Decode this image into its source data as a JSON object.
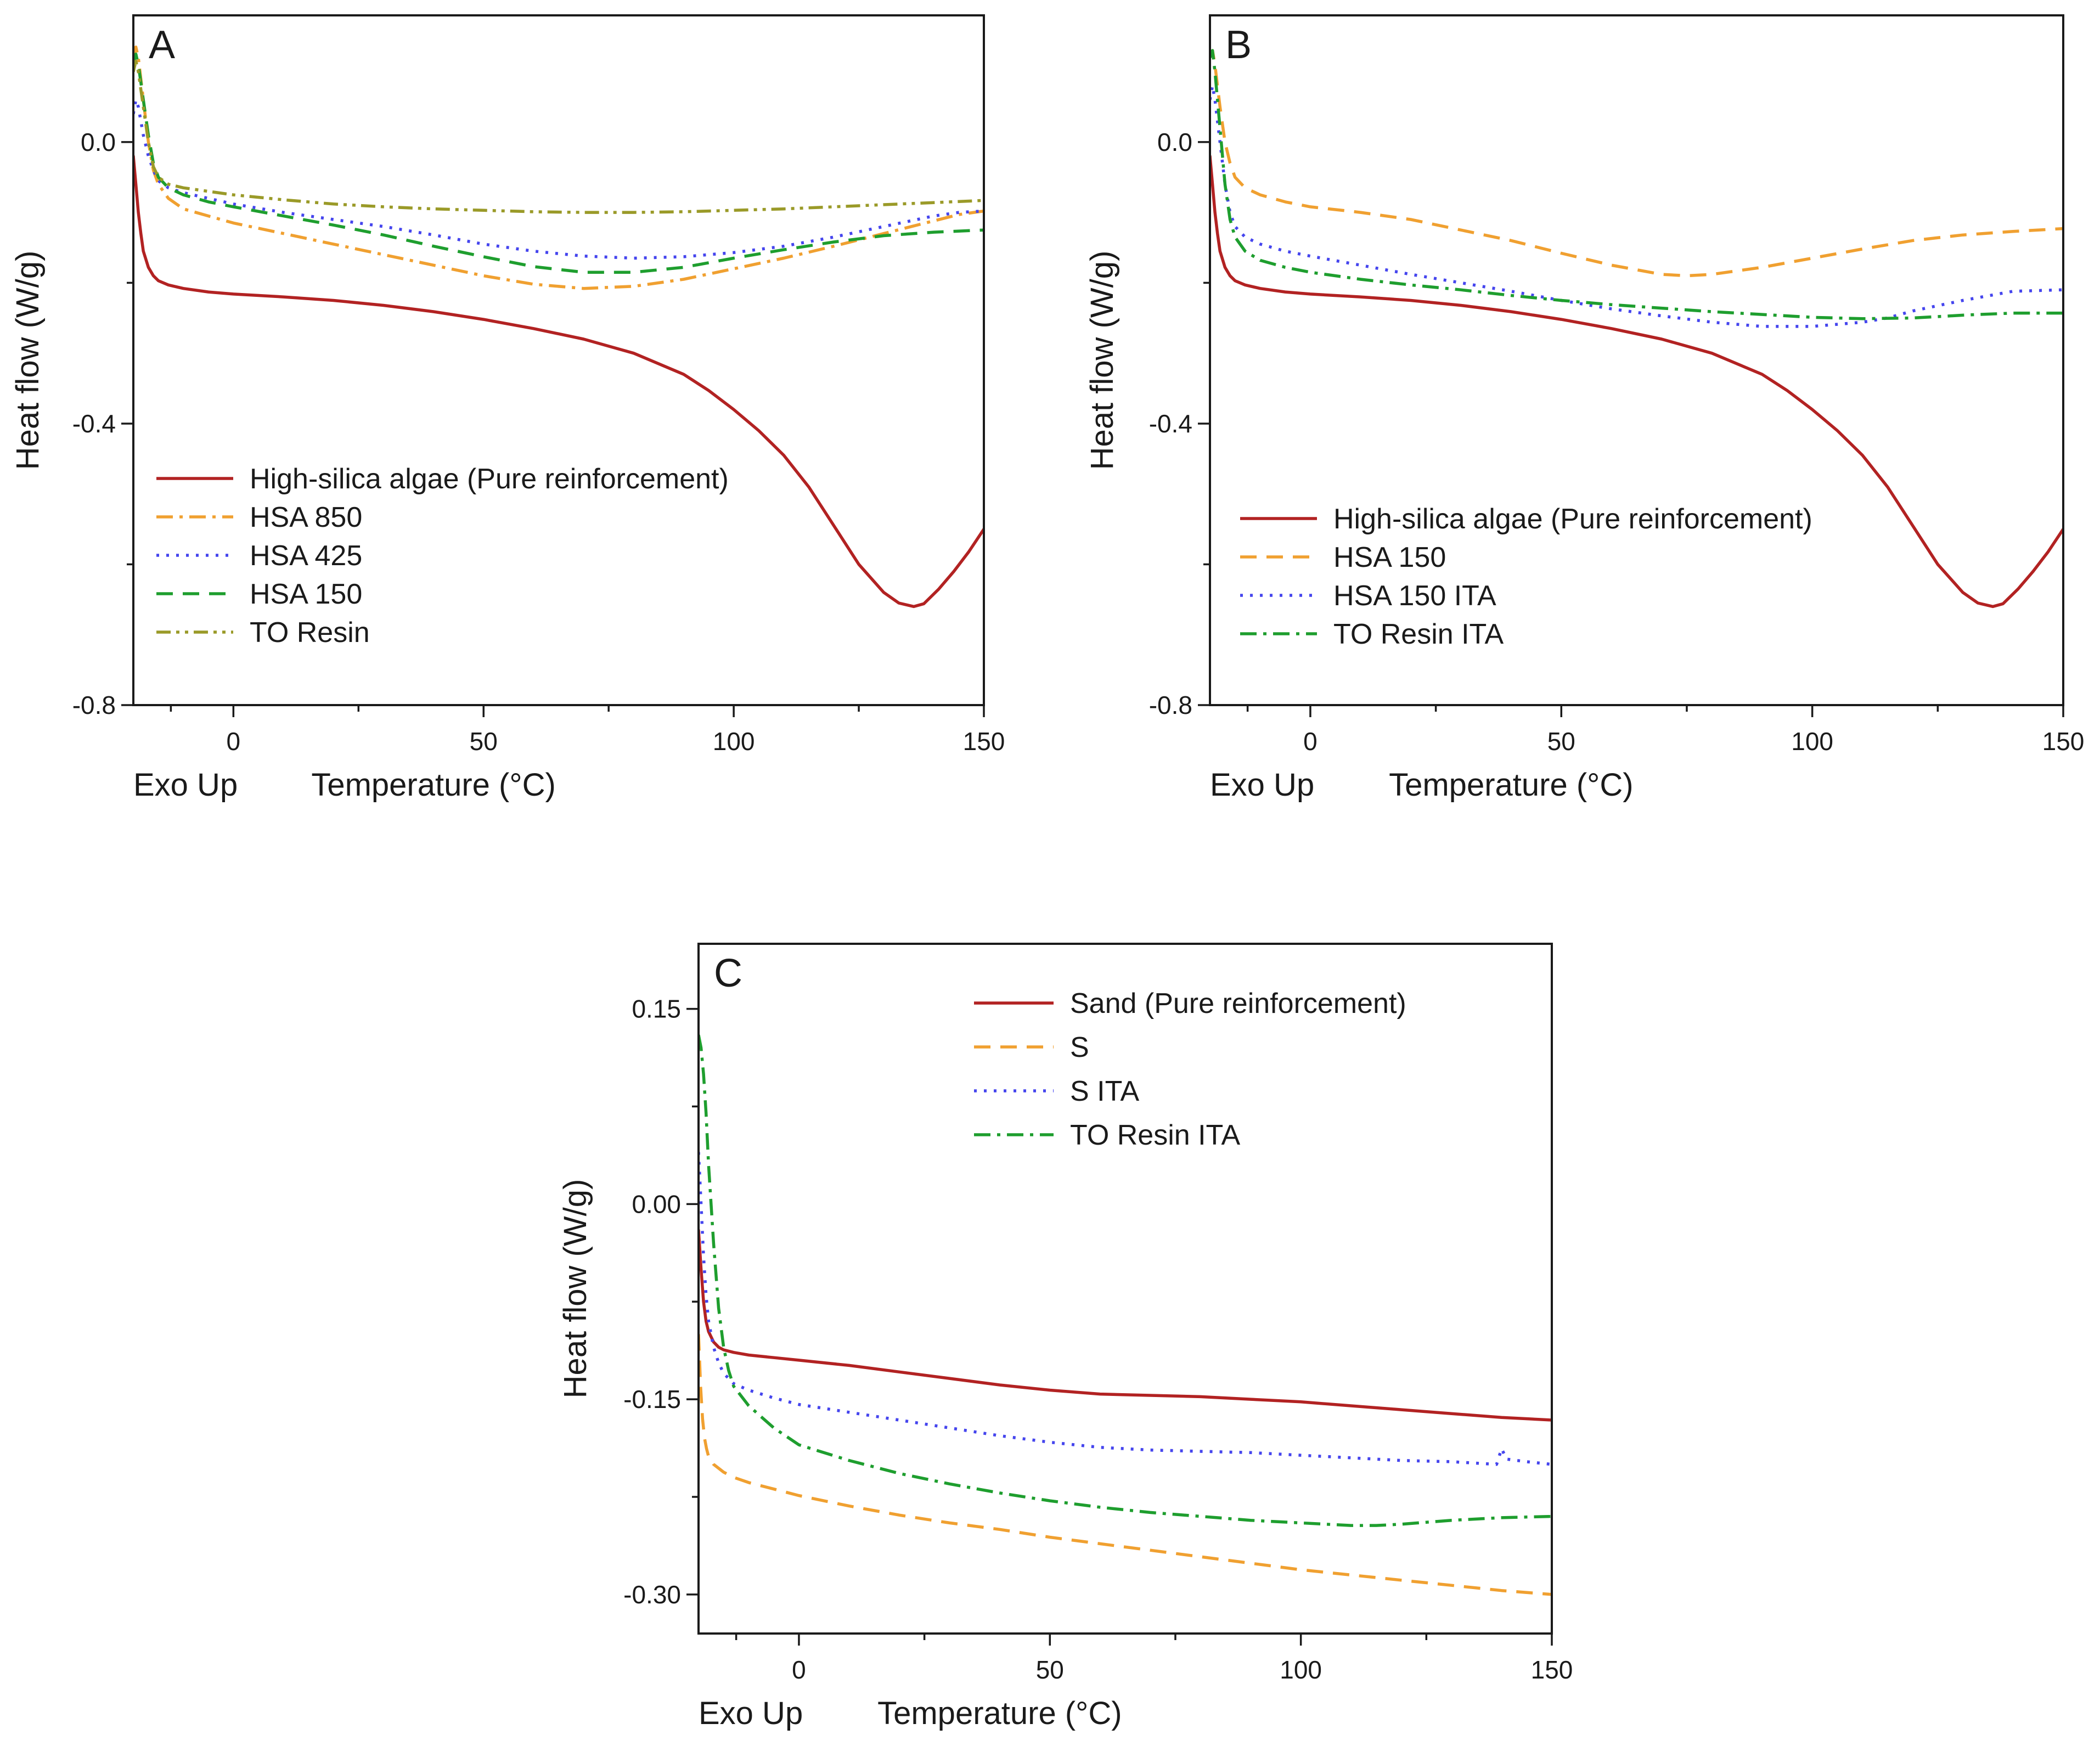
{
  "chart_data": [
    {
      "type": "line",
      "panel": "A",
      "xlabel": "Temperature (°C)",
      "ylabel": "Heat flow (W/g)",
      "note": "Exo Up",
      "xlim": [
        -20,
        150
      ],
      "ylim": [
        -0.8,
        0.18
      ],
      "xticks": [
        0,
        50,
        100,
        150
      ],
      "yticks": [
        0.0,
        -0.4,
        -0.8
      ],
      "xtick_labels": [
        "0",
        "50",
        "100",
        "150"
      ],
      "ytick_labels": [
        "0.0",
        "-0.4",
        "-0.8"
      ],
      "legend_position": "lower-left",
      "series": [
        {
          "name": "High-silica algae (Pure reinforcement)",
          "color": "#b22222",
          "dash": "solid",
          "x": [
            -20,
            -19.5,
            -19,
            -18.5,
            -18,
            -17,
            -16,
            -15,
            -13,
            -10,
            -5,
            0,
            10,
            20,
            30,
            40,
            50,
            60,
            70,
            80,
            90,
            95,
            100,
            105,
            110,
            115,
            120,
            125,
            130,
            133,
            136,
            138,
            141,
            144,
            147,
            150
          ],
          "y": [
            -0.02,
            -0.06,
            -0.1,
            -0.13,
            -0.155,
            -0.178,
            -0.19,
            -0.197,
            -0.203,
            -0.208,
            -0.213,
            -0.216,
            -0.22,
            -0.225,
            -0.232,
            -0.241,
            -0.252,
            -0.265,
            -0.28,
            -0.3,
            -0.33,
            -0.353,
            -0.38,
            -0.41,
            -0.445,
            -0.49,
            -0.545,
            -0.6,
            -0.64,
            -0.655,
            -0.66,
            -0.656,
            -0.635,
            -0.61,
            -0.582,
            -0.55
          ]
        },
        {
          "name": "HSA 850",
          "color": "#f0a030",
          "dash": "dashdot",
          "x": [
            -20,
            -19.5,
            -19,
            -18,
            -17,
            -16,
            -15,
            -13,
            -10,
            -5,
            0,
            10,
            20,
            30,
            40,
            50,
            60,
            70,
            80,
            90,
            100,
            110,
            120,
            130,
            140,
            145,
            150
          ],
          "y": [
            0.12,
            0.135,
            0.12,
            0.06,
            0.0,
            -0.04,
            -0.06,
            -0.08,
            -0.095,
            -0.105,
            -0.115,
            -0.13,
            -0.145,
            -0.16,
            -0.175,
            -0.19,
            -0.202,
            -0.208,
            -0.205,
            -0.195,
            -0.18,
            -0.165,
            -0.148,
            -0.13,
            -0.112,
            -0.103,
            -0.098
          ]
        },
        {
          "name": "HSA 425",
          "color": "#4545ee",
          "dash": "dotted",
          "x": [
            -20,
            -19.5,
            -19,
            -18,
            -17,
            -16,
            -15,
            -13,
            -10,
            -5,
            0,
            10,
            20,
            30,
            40,
            50,
            60,
            70,
            80,
            90,
            100,
            110,
            120,
            130,
            140,
            145,
            150
          ],
          "y": [
            0.04,
            0.06,
            0.05,
            0.01,
            -0.02,
            -0.04,
            -0.055,
            -0.065,
            -0.072,
            -0.08,
            -0.088,
            -0.1,
            -0.11,
            -0.12,
            -0.132,
            -0.145,
            -0.155,
            -0.162,
            -0.165,
            -0.163,
            -0.157,
            -0.148,
            -0.135,
            -0.12,
            -0.105,
            -0.1,
            -0.098
          ]
        },
        {
          "name": "HSA 150",
          "color": "#1e9e2e",
          "dash": "dashed",
          "x": [
            -20,
            -19.5,
            -19,
            -18,
            -17,
            -16,
            -15,
            -13,
            -10,
            -5,
            0,
            10,
            20,
            30,
            40,
            50,
            60,
            70,
            80,
            90,
            100,
            110,
            120,
            130,
            140,
            150
          ],
          "y": [
            0.11,
            0.125,
            0.11,
            0.06,
            0.01,
            -0.03,
            -0.05,
            -0.065,
            -0.075,
            -0.085,
            -0.092,
            -0.105,
            -0.118,
            -0.132,
            -0.148,
            -0.163,
            -0.177,
            -0.185,
            -0.185,
            -0.178,
            -0.165,
            -0.153,
            -0.142,
            -0.133,
            -0.128,
            -0.125
          ]
        },
        {
          "name": "TO Resin",
          "color": "#9a9a28",
          "dash": "dashdotdot",
          "x": [
            -20,
            -19.5,
            -19,
            -18,
            -17,
            -16,
            -15,
            -13,
            -10,
            -5,
            0,
            10,
            20,
            30,
            40,
            50,
            60,
            70,
            80,
            90,
            100,
            110,
            120,
            130,
            140,
            150
          ],
          "y": [
            0.1,
            0.115,
            0.1,
            0.05,
            0.0,
            -0.035,
            -0.05,
            -0.06,
            -0.065,
            -0.07,
            -0.075,
            -0.082,
            -0.088,
            -0.092,
            -0.095,
            -0.097,
            -0.099,
            -0.1,
            -0.1,
            -0.099,
            -0.097,
            -0.095,
            -0.092,
            -0.089,
            -0.086,
            -0.083
          ]
        }
      ]
    },
    {
      "type": "line",
      "panel": "B",
      "xlabel": "Temperature (°C)",
      "ylabel": "Heat flow (W/g)",
      "note": "Exo Up",
      "xlim": [
        -20,
        150
      ],
      "ylim": [
        -0.8,
        0.18
      ],
      "xticks": [
        0,
        50,
        100,
        150
      ],
      "yticks": [
        0.0,
        -0.4,
        -0.8
      ],
      "xtick_labels": [
        "0",
        "50",
        "100",
        "150"
      ],
      "ytick_labels": [
        "0.0",
        "-0.4",
        "-0.8"
      ],
      "legend_position": "lower-left",
      "series": [
        {
          "name": "High-silica algae (Pure reinforcement)",
          "color": "#b22222",
          "dash": "solid",
          "x": [
            -20,
            -19.5,
            -19,
            -18.5,
            -18,
            -17,
            -16,
            -15,
            -13,
            -10,
            -5,
            0,
            10,
            20,
            30,
            40,
            50,
            60,
            70,
            80,
            90,
            95,
            100,
            105,
            110,
            115,
            120,
            125,
            130,
            133,
            136,
            138,
            141,
            144,
            147,
            150
          ],
          "y": [
            -0.02,
            -0.06,
            -0.1,
            -0.13,
            -0.155,
            -0.178,
            -0.19,
            -0.197,
            -0.203,
            -0.208,
            -0.213,
            -0.216,
            -0.22,
            -0.225,
            -0.232,
            -0.241,
            -0.252,
            -0.265,
            -0.28,
            -0.3,
            -0.33,
            -0.353,
            -0.38,
            -0.41,
            -0.445,
            -0.49,
            -0.545,
            -0.6,
            -0.64,
            -0.655,
            -0.66,
            -0.656,
            -0.635,
            -0.61,
            -0.582,
            -0.55
          ]
        },
        {
          "name": "HSA 150",
          "color": "#f0a030",
          "dash": "dashed",
          "x": [
            -20,
            -19.5,
            -19,
            -18.5,
            -18,
            -17,
            -16,
            -15,
            -13,
            -10,
            -5,
            0,
            10,
            20,
            30,
            40,
            50,
            60,
            70,
            75,
            80,
            90,
            100,
            110,
            120,
            130,
            140,
            150
          ],
          "y": [
            0.12,
            0.13,
            0.11,
            0.08,
            0.05,
            0.0,
            -0.03,
            -0.05,
            -0.065,
            -0.075,
            -0.085,
            -0.092,
            -0.1,
            -0.11,
            -0.125,
            -0.14,
            -0.158,
            -0.175,
            -0.188,
            -0.19,
            -0.188,
            -0.178,
            -0.165,
            -0.152,
            -0.14,
            -0.132,
            -0.127,
            -0.123
          ]
        },
        {
          "name": "HSA 150 ITA",
          "color": "#4545ee",
          "dash": "dotted",
          "x": [
            -20,
            -19.5,
            -19,
            -18,
            -17,
            -16,
            -15,
            -13,
            -10,
            -5,
            0,
            10,
            20,
            30,
            40,
            50,
            60,
            70,
            80,
            90,
            100,
            110,
            115,
            120,
            130,
            140,
            150
          ],
          "y": [
            0.06,
            0.08,
            0.06,
            0.0,
            -0.06,
            -0.1,
            -0.12,
            -0.135,
            -0.145,
            -0.155,
            -0.162,
            -0.175,
            -0.188,
            -0.2,
            -0.212,
            -0.225,
            -0.237,
            -0.247,
            -0.256,
            -0.262,
            -0.262,
            -0.256,
            -0.25,
            -0.24,
            -0.225,
            -0.212,
            -0.21
          ]
        },
        {
          "name": "TO Resin ITA",
          "color": "#1e9e2e",
          "dash": "dashdot",
          "x": [
            -20,
            -19.5,
            -19,
            -18,
            -17,
            -16,
            -15,
            -13,
            -10,
            -5,
            0,
            10,
            20,
            30,
            40,
            50,
            60,
            70,
            80,
            90,
            100,
            110,
            120,
            130,
            140,
            150
          ],
          "y": [
            0.12,
            0.13,
            0.1,
            0.02,
            -0.06,
            -0.11,
            -0.135,
            -0.155,
            -0.168,
            -0.178,
            -0.185,
            -0.195,
            -0.203,
            -0.21,
            -0.218,
            -0.225,
            -0.231,
            -0.236,
            -0.241,
            -0.245,
            -0.249,
            -0.251,
            -0.25,
            -0.246,
            -0.243,
            -0.243
          ]
        }
      ]
    },
    {
      "type": "line",
      "panel": "C",
      "xlabel": "Temperature (°C)",
      "ylabel": "Heat flow (W/g)",
      "note": "Exo Up",
      "xlim": [
        -20,
        150
      ],
      "ylim": [
        -0.33,
        0.2
      ],
      "xticks": [
        0,
        50,
        100,
        150
      ],
      "yticks": [
        0.15,
        0.0,
        -0.15,
        -0.3
      ],
      "xtick_labels": [
        "0",
        "50",
        "100",
        "150"
      ],
      "ytick_labels": [
        "0.15",
        "0.00",
        "-0.15",
        "-0.30"
      ],
      "legend_position": "top-right",
      "series": [
        {
          "name": "Sand (Pure reinforcement)",
          "color": "#b22222",
          "dash": "solid",
          "x": [
            -20,
            -19.5,
            -19,
            -18.5,
            -18,
            -17,
            -16,
            -15,
            -13,
            -10,
            -5,
            0,
            10,
            20,
            30,
            40,
            50,
            60,
            70,
            80,
            90,
            100,
            110,
            120,
            130,
            140,
            150
          ],
          "y": [
            -0.02,
            -0.05,
            -0.075,
            -0.09,
            -0.098,
            -0.106,
            -0.11,
            -0.112,
            -0.114,
            -0.116,
            -0.118,
            -0.12,
            -0.124,
            -0.129,
            -0.134,
            -0.139,
            -0.143,
            -0.146,
            -0.147,
            -0.148,
            -0.15,
            -0.152,
            -0.155,
            -0.158,
            -0.161,
            -0.164,
            -0.166
          ]
        },
        {
          "name": "S",
          "color": "#f0a030",
          "dash": "dashed",
          "x": [
            -20,
            -19.6,
            -19.2,
            -18.8,
            -18.4,
            -18,
            -17,
            -16,
            -15,
            -13,
            -10,
            -5,
            0,
            10,
            20,
            30,
            40,
            50,
            60,
            70,
            80,
            90,
            100,
            110,
            120,
            130,
            140,
            150
          ],
          "y": [
            -0.1,
            -0.14,
            -0.165,
            -0.18,
            -0.188,
            -0.194,
            -0.2,
            -0.203,
            -0.206,
            -0.21,
            -0.214,
            -0.219,
            -0.224,
            -0.232,
            -0.239,
            -0.245,
            -0.25,
            -0.256,
            -0.261,
            -0.266,
            -0.271,
            -0.276,
            -0.281,
            -0.285,
            -0.289,
            -0.293,
            -0.297,
            -0.3
          ]
        },
        {
          "name": "S ITA",
          "color": "#4545ee",
          "dash": "dotted",
          "x": [
            -20,
            -19.5,
            -19,
            -18.5,
            -18,
            -17,
            -16,
            -15,
            -13,
            -10,
            -5,
            0,
            10,
            20,
            30,
            40,
            50,
            60,
            70,
            80,
            90,
            100,
            110,
            120,
            130,
            139,
            140,
            141,
            145,
            150
          ],
          "y": [
            0.04,
            0.0,
            -0.04,
            -0.07,
            -0.09,
            -0.11,
            -0.122,
            -0.13,
            -0.138,
            -0.143,
            -0.149,
            -0.154,
            -0.16,
            -0.166,
            -0.172,
            -0.178,
            -0.183,
            -0.187,
            -0.189,
            -0.19,
            -0.191,
            -0.193,
            -0.195,
            -0.197,
            -0.198,
            -0.2,
            -0.188,
            -0.196,
            -0.198,
            -0.2
          ]
        },
        {
          "name": "TO Resin ITA",
          "color": "#1e9e2e",
          "dash": "dashdot",
          "x": [
            -20,
            -19.5,
            -19,
            -18.5,
            -18,
            -17,
            -16,
            -15,
            -14,
            -13,
            -10,
            -5,
            0,
            10,
            20,
            30,
            40,
            50,
            60,
            70,
            80,
            90,
            100,
            105,
            110,
            115,
            120,
            130,
            140,
            150
          ],
          "y": [
            0.13,
            0.12,
            0.1,
            0.07,
            0.03,
            -0.03,
            -0.08,
            -0.11,
            -0.128,
            -0.14,
            -0.155,
            -0.172,
            -0.185,
            -0.197,
            -0.207,
            -0.215,
            -0.222,
            -0.228,
            -0.233,
            -0.237,
            -0.24,
            -0.243,
            -0.245,
            -0.246,
            -0.247,
            -0.247,
            -0.246,
            -0.243,
            -0.241,
            -0.24
          ]
        }
      ]
    }
  ]
}
